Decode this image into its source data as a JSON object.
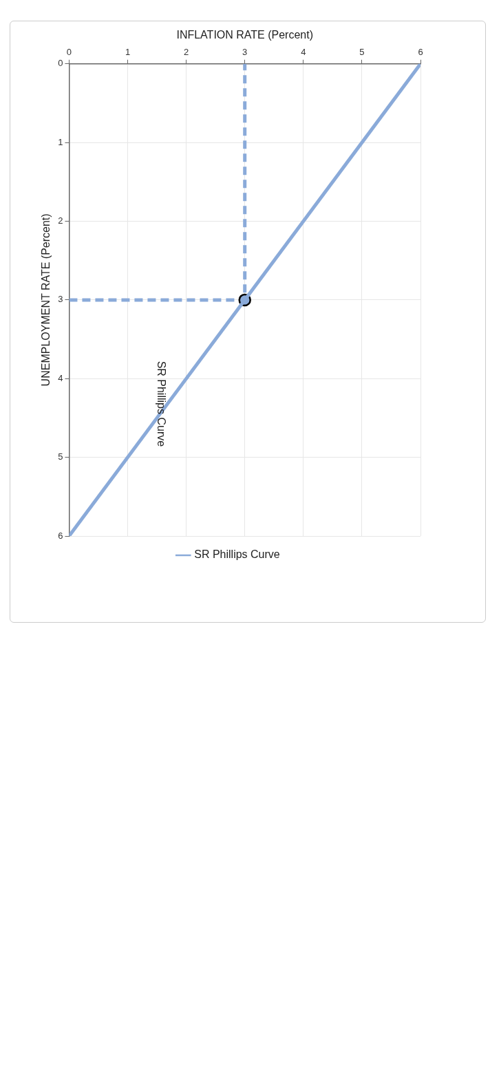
{
  "chart_data": {
    "type": "line",
    "xlabel": "INFLATION RATE (Percent)",
    "ylabel": "UNEMPLOYMENT RATE (Percent)",
    "xlim": [
      0,
      6
    ],
    "xticks": [
      0,
      1,
      2,
      3,
      4,
      5,
      6
    ],
    "ylim": [
      6,
      0
    ],
    "yticks": [
      0,
      1,
      2,
      3,
      4,
      5,
      6
    ],
    "grid": true,
    "legend": "bottom",
    "series": [
      {
        "name": "SR Phillips Curve",
        "color": "#8aaad9",
        "x": [
          0,
          6
        ],
        "values": [
          6,
          0
        ],
        "marker": "none",
        "line_style": "solid"
      },
      {
        "type": "scatter",
        "color": "#8aaad9",
        "x": [
          3
        ],
        "values": [
          3
        ],
        "marker": "circle"
      },
      {
        "color": "#8aaad9",
        "x": [
          0,
          3,
          3
        ],
        "values": [
          3,
          3,
          0
        ],
        "marker": "none",
        "line_style": "dashed"
      }
    ],
    "annotations": [
      "SR Phillips Curve"
    ]
  }
}
